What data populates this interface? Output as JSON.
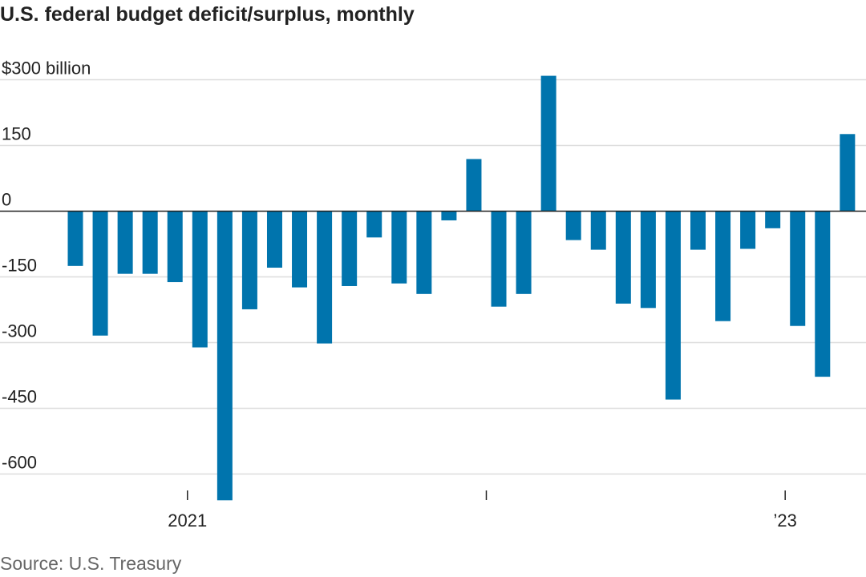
{
  "title": "U.S. federal budget deficit/surplus, monthly",
  "source": "Source: U.S. Treasury",
  "colors": {
    "bar": "#0074ad",
    "grid": "#dddddd",
    "zero": "#222222",
    "text": "#222222",
    "source": "#666666"
  },
  "chart_data": {
    "type": "bar",
    "title": "U.S. federal budget deficit/surplus, monthly",
    "xlabel": "",
    "ylabel": "",
    "y_unit_label": "$300 billion",
    "ylim": [
      -650,
      310
    ],
    "yticks": [
      300,
      150,
      0,
      -150,
      -300,
      -450,
      -600
    ],
    "ytick_labels": [
      "$300 billion",
      "150",
      "0",
      "-150",
      "-300",
      "-450",
      "-600"
    ],
    "x_ticks": [
      {
        "index": 4.5,
        "label": "2021"
      },
      {
        "index": 16.5,
        "label": ""
      },
      {
        "index": 28.5,
        "label": "’23"
      }
    ],
    "series": [
      {
        "name": "Deficit/surplus ($ billion)",
        "values": [
          -125,
          -284,
          -143,
          -143,
          -162,
          -311,
          -660,
          -224,
          -129,
          -174,
          -302,
          -171,
          -60,
          -165,
          -189,
          -21,
          119,
          -218,
          -189,
          309,
          -66,
          -88,
          -211,
          -221,
          -430,
          -88,
          -251,
          -86,
          -39,
          -262,
          -378,
          176
        ]
      }
    ]
  }
}
